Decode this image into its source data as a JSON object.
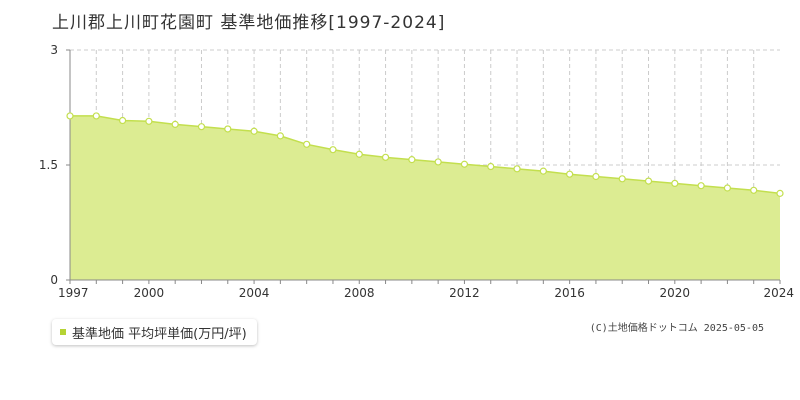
{
  "page_title": "上川郡上川町花園町 基準地価推移[1997-2024]",
  "legend": {
    "label": "基準地価 平均坪単価(万円/坪)"
  },
  "copyright": "(C)土地価格ドットコム 2025-05-05",
  "colors": {
    "area_fill": "#dcec92",
    "line": "#c3df4e",
    "marker_fill": "#ffffff",
    "grid": "#cccccc",
    "legend_marker": "#b5d334"
  },
  "chart_data": {
    "type": "area",
    "title": "上川郡上川町花園町 基準地価推移[1997-2024]",
    "xlabel": "",
    "ylabel": "",
    "xlim": [
      1997,
      2024
    ],
    "ylim": [
      0,
      3
    ],
    "x_ticks": [
      "1997",
      "2000",
      "2004",
      "2008",
      "2012",
      "2016",
      "2020",
      "2024"
    ],
    "y_ticks": [
      "0",
      "1.5",
      "3"
    ],
    "grid": true,
    "legend_position": "bottom-left",
    "series": [
      {
        "name": "基準地価 平均坪単価(万円/坪)",
        "x": [
          1997,
          1998,
          1999,
          2000,
          2001,
          2002,
          2003,
          2004,
          2005,
          2006,
          2007,
          2008,
          2009,
          2010,
          2011,
          2012,
          2013,
          2014,
          2015,
          2016,
          2017,
          2018,
          2019,
          2020,
          2021,
          2022,
          2023,
          2024
        ],
        "values": [
          2.14,
          2.14,
          2.08,
          2.07,
          2.03,
          2.0,
          1.97,
          1.94,
          1.88,
          1.77,
          1.7,
          1.64,
          1.6,
          1.57,
          1.54,
          1.51,
          1.48,
          1.45,
          1.42,
          1.38,
          1.35,
          1.32,
          1.29,
          1.26,
          1.23,
          1.2,
          1.17,
          1.13
        ]
      }
    ]
  }
}
